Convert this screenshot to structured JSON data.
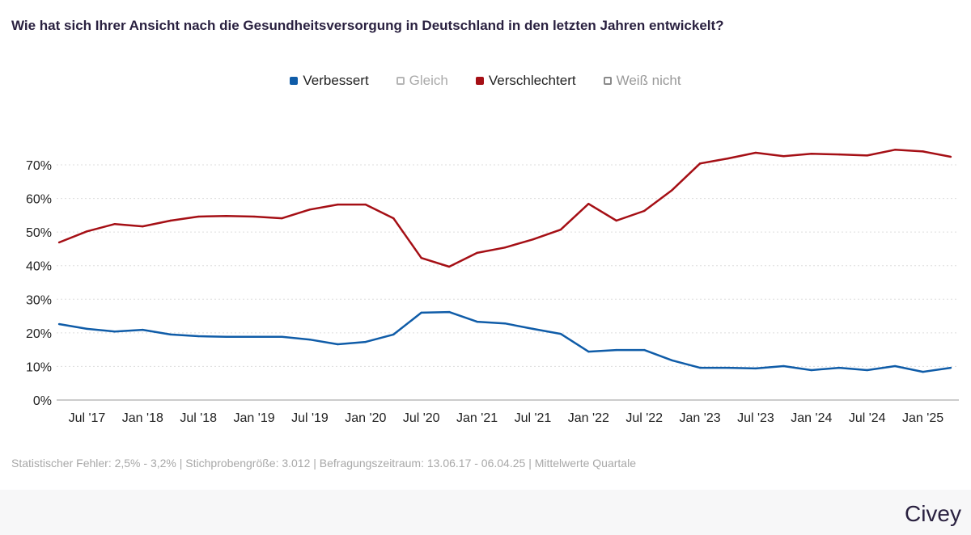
{
  "chart_data": {
    "type": "line",
    "title": "Wie hat sich Ihrer Ansicht nach die Gesundheitsversorgung in Deutschland in den letzten Jahren entwickelt?",
    "xlabel": "",
    "ylabel": "",
    "ylim": [
      0,
      70
    ],
    "yticks": [
      "0%",
      "10%",
      "20%",
      "30%",
      "40%",
      "50%",
      "60%",
      "70%"
    ],
    "grid": true,
    "legend_position": "top",
    "x": [
      "2017-Q2",
      "2017-Q3",
      "2017-Q4",
      "2018-Q1",
      "2018-Q2",
      "2018-Q3",
      "2018-Q4",
      "2019-Q1",
      "2019-Q2",
      "2019-Q3",
      "2019-Q4",
      "2020-Q1",
      "2020-Q2",
      "2020-Q3",
      "2020-Q4",
      "2021-Q1",
      "2021-Q2",
      "2021-Q3",
      "2021-Q4",
      "2022-Q1",
      "2022-Q2",
      "2022-Q3",
      "2022-Q4",
      "2023-Q1",
      "2023-Q2",
      "2023-Q3",
      "2023-Q4",
      "2024-Q1",
      "2024-Q2",
      "2024-Q3",
      "2024-Q4",
      "2025-Q1",
      "2025-Q2"
    ],
    "xticks": [
      "Jul '17",
      "Jan '18",
      "Jul '18",
      "Jan '19",
      "Jul '19",
      "Jan '20",
      "Jul '20",
      "Jan '21",
      "Jul '21",
      "Jan '22",
      "Jul '22",
      "Jan '23",
      "Jul '23",
      "Jan '24",
      "Jul '24",
      "Jan '25"
    ],
    "legend": [
      {
        "name": "Verbessert",
        "color": "#0f5ca8",
        "plotted": true
      },
      {
        "name": "Gleich",
        "color": "#b5b5b5",
        "plotted": false
      },
      {
        "name": "Verschlechtert",
        "color": "#a50f15",
        "plotted": true
      },
      {
        "name": "Weiß nicht",
        "color": "#8a8a8a",
        "plotted": false
      }
    ],
    "series": [
      {
        "name": "Verbessert",
        "color": "#0f5ca8",
        "values": [
          22.6,
          21.2,
          20.4,
          20.9,
          19.5,
          19.0,
          18.8,
          18.8,
          18.8,
          18.0,
          16.6,
          17.3,
          19.5,
          26.0,
          26.2,
          23.3,
          22.8,
          21.2,
          19.7,
          14.4,
          14.9,
          14.9,
          11.8,
          9.6,
          9.6,
          9.4,
          10.1,
          8.9,
          9.6,
          8.9,
          10.1,
          8.4,
          9.6
        ]
      },
      {
        "name": "Verschlechtert",
        "color": "#a50f15",
        "values": [
          46.9,
          50.2,
          52.4,
          51.7,
          53.4,
          54.6,
          54.8,
          54.6,
          54.1,
          56.7,
          58.2,
          58.2,
          54.1,
          42.3,
          39.7,
          43.8,
          45.4,
          47.8,
          50.7,
          58.4,
          53.4,
          56.3,
          62.5,
          70.4,
          71.9,
          73.6,
          72.6,
          73.3,
          73.1,
          72.8,
          74.5,
          74.0,
          72.4
        ]
      }
    ]
  },
  "footer": {
    "note": "Statistischer Fehler: 2,5% - 3,2% | Stichprobengröße: 3.012 | Befragungszeitraum: 13.06.17 - 06.04.25 | Mittelwerte Quartale",
    "brand": "Civey"
  }
}
